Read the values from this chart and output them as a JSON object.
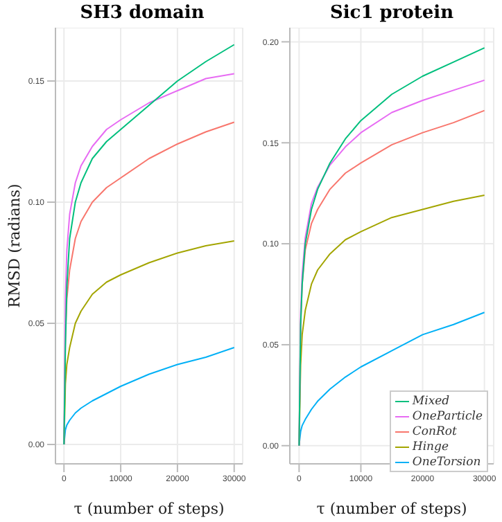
{
  "chart_data": [
    {
      "type": "line",
      "title": "SH3 domain",
      "xlabel": "τ (number of steps)",
      "ylabel": "RMSD (radians)",
      "x": [
        0,
        250,
        500,
        1000,
        2000,
        3000,
        5000,
        7500,
        10000,
        15000,
        20000,
        25000,
        30000
      ],
      "series": [
        {
          "color": "#00BF7D",
          "values": [
            0,
            0.04,
            0.065,
            0.085,
            0.1,
            0.108,
            0.118,
            0.125,
            0.13,
            0.14,
            0.15,
            0.158,
            0.165
          ]
        },
        {
          "color": "#E76BF3",
          "values": [
            0,
            0.06,
            0.08,
            0.095,
            0.108,
            0.115,
            0.123,
            0.13,
            0.134,
            0.141,
            0.146,
            0.151,
            0.153
          ]
        },
        {
          "color": "#F8766D",
          "values": [
            0,
            0.045,
            0.06,
            0.072,
            0.085,
            0.092,
            0.1,
            0.106,
            0.11,
            0.118,
            0.124,
            0.129,
            0.133
          ]
        },
        {
          "color": "#A3A500",
          "values": [
            0,
            0.025,
            0.033,
            0.04,
            0.05,
            0.055,
            0.062,
            0.067,
            0.07,
            0.075,
            0.079,
            0.082,
            0.084
          ]
        },
        {
          "color": "#00B0F6",
          "values": [
            0,
            0.006,
            0.008,
            0.01,
            0.013,
            0.015,
            0.018,
            0.021,
            0.024,
            0.029,
            0.033,
            0.036,
            0.04
          ]
        }
      ],
      "xlim": [
        -1500,
        31500
      ],
      "xticks": [
        0,
        10000,
        20000,
        30000
      ],
      "ylim": [
        -0.008,
        0.172
      ],
      "yticks": [
        {
          "value": 0,
          "label": "0.00"
        },
        {
          "value": 0.05,
          "label": "0.05"
        },
        {
          "value": 0.1,
          "label": "0.10"
        },
        {
          "value": 0.15,
          "label": "0.15"
        }
      ],
      "grid": true,
      "legend": false,
      "marker": "none",
      "line_style": "solid"
    },
    {
      "type": "line",
      "title": "Sic1 protein",
      "xlabel": "τ (number of steps)",
      "x": [
        0,
        250,
        500,
        1000,
        2000,
        3000,
        5000,
        7500,
        10000,
        15000,
        20000,
        25000,
        30000
      ],
      "series": [
        {
          "name": "Mixed",
          "color": "#00BF7D",
          "values": [
            0,
            0.06,
            0.08,
            0.1,
            0.117,
            0.127,
            0.14,
            0.152,
            0.161,
            0.174,
            0.183,
            0.19,
            0.197
          ]
        },
        {
          "name": "OneParticle",
          "color": "#E76BF3",
          "values": [
            0,
            0.065,
            0.085,
            0.103,
            0.12,
            0.128,
            0.139,
            0.148,
            0.155,
            0.165,
            0.171,
            0.176,
            0.181
          ]
        },
        {
          "name": "ConRot",
          "color": "#F8766D",
          "values": [
            0,
            0.06,
            0.08,
            0.097,
            0.11,
            0.117,
            0.127,
            0.135,
            0.14,
            0.149,
            0.155,
            0.16,
            0.166
          ]
        },
        {
          "name": "Hinge",
          "color": "#A3A500",
          "values": [
            0,
            0.04,
            0.055,
            0.067,
            0.08,
            0.087,
            0.095,
            0.102,
            0.106,
            0.113,
            0.117,
            0.121,
            0.124
          ]
        },
        {
          "name": "OneTorsion",
          "color": "#00B0F6",
          "values": [
            0,
            0.007,
            0.01,
            0.013,
            0.018,
            0.022,
            0.028,
            0.034,
            0.039,
            0.047,
            0.055,
            0.06,
            0.066
          ]
        }
      ],
      "xlim": [
        -1500,
        31500
      ],
      "xticks": [
        0,
        10000,
        20000,
        30000
      ],
      "ylim": [
        -0.009,
        0.207
      ],
      "yticks": [
        {
          "value": 0,
          "label": "0.00"
        },
        {
          "value": 0.05,
          "label": "0.05"
        },
        {
          "value": 0.1,
          "label": "0.10"
        },
        {
          "value": 0.15,
          "label": "0.15"
        },
        {
          "value": 0.2,
          "label": "0.20"
        }
      ],
      "grid": true,
      "legend": "bottom right",
      "marker": "none",
      "line_style": "solid"
    }
  ]
}
